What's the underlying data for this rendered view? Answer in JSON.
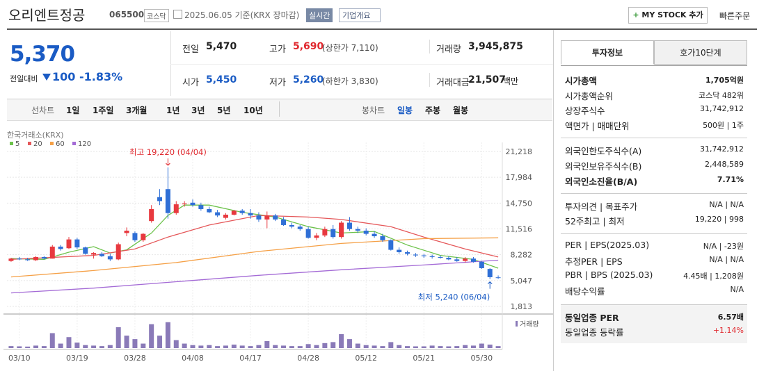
{
  "header": {
    "name": "오리엔트정공",
    "code": "065500",
    "market": "코스닥",
    "date": "2025.06.05 기준(KRX 장마감)",
    "realtime": "실시간",
    "overview": "기업개요",
    "mystock": "MY STOCK 추가",
    "quick_order": "빠른주문"
  },
  "price": {
    "current": "5,370",
    "change_label": "전일대비",
    "change": "100",
    "rate": "-1.83%"
  },
  "summary": {
    "rows": [
      [
        {
          "label": "전일",
          "value": "5,470"
        },
        {
          "label": "고가",
          "value": "5,690",
          "extra": "(상한가 7,110)"
        },
        {
          "label": "거래량",
          "value": "3,945,875"
        }
      ],
      [
        {
          "label": "시가",
          "value": "5,450"
        },
        {
          "label": "저가",
          "value": "5,260",
          "extra": "(하한가 3,830)"
        },
        {
          "label": "거래대금",
          "value": "21,507",
          "unit": "백만"
        }
      ]
    ]
  },
  "tabs": {
    "line_label": "선차트",
    "line": [
      "1일",
      "1주일",
      "3개월",
      "1년",
      "3년",
      "5년",
      "10년"
    ],
    "candle_label": "봉차트",
    "candle": [
      "일봉",
      "주봉",
      "월봉"
    ]
  },
  "chart_data": {
    "type": "candlestick",
    "source": "한국거래소(KRX)",
    "up_color": "#e8393f",
    "down_color": "#2f6fd6",
    "open": [
      7500,
      7800,
      7700,
      7600,
      8000,
      7800,
      9300,
      9100,
      10200,
      9200,
      8300,
      8400,
      8100,
      7700,
      11000,
      11000,
      10100,
      12500,
      15500,
      16500,
      13500,
      14600,
      14800,
      14500,
      14000,
      13600,
      12900,
      13300,
      13800,
      13500,
      13200,
      12700,
      13200,
      12700,
      12000,
      11800,
      11500,
      10400,
      10700,
      11500,
      10500,
      12300,
      11500,
      11300,
      10900,
      10600,
      10100,
      8900,
      8600,
      8300,
      8200,
      8100,
      8000,
      7900,
      7700,
      7500,
      7800,
      7400,
      6500,
      5450
    ],
    "high": [
      7900,
      8000,
      7900,
      8100,
      8100,
      9500,
      9500,
      10500,
      10400,
      9300,
      8600,
      8600,
      8400,
      9800,
      11700,
      11200,
      11000,
      14500,
      16500,
      19220,
      15000,
      15000,
      15200,
      14800,
      14300,
      13900,
      13500,
      13900,
      14000,
      14000,
      13600,
      13700,
      13400,
      13000,
      12300,
      12000,
      11800,
      11000,
      11800,
      12000,
      12500,
      13000,
      11800,
      11600,
      11200,
      10900,
      10200,
      9200,
      8800,
      8500,
      8400,
      8300,
      8200,
      8100,
      8000,
      8000,
      8000,
      7500,
      6600,
      5690
    ],
    "low": [
      7400,
      7600,
      7500,
      7500,
      7700,
      7800,
      8800,
      9000,
      9000,
      8300,
      7800,
      8000,
      7500,
      7600,
      10600,
      9900,
      9900,
      12300,
      14500,
      12800,
      13300,
      14300,
      14300,
      13800,
      13500,
      13000,
      12700,
      13200,
      13300,
      12800,
      12400,
      11600,
      12500,
      11900,
      11600,
      11300,
      10300,
      10100,
      10500,
      10300,
      10300,
      11300,
      11000,
      10700,
      10400,
      9900,
      8800,
      8400,
      8200,
      8000,
      7900,
      7800,
      7800,
      7600,
      7400,
      7300,
      7300,
      6500,
      5240,
      5260
    ],
    "close": [
      7800,
      7700,
      7600,
      8000,
      7800,
      9300,
      9000,
      10200,
      9200,
      8400,
      8500,
      8100,
      7700,
      9600,
      11300,
      10100,
      10900,
      14000,
      15000,
      13500,
      14600,
      14700,
      14500,
      14000,
      13600,
      13200,
      13300,
      13800,
      13500,
      13200,
      12700,
      13200,
      12700,
      12000,
      11800,
      11500,
      10400,
      10700,
      11500,
      10500,
      12300,
      11500,
      11300,
      10900,
      10600,
      10100,
      8900,
      8600,
      8400,
      8200,
      8100,
      8000,
      7900,
      7700,
      7500,
      7800,
      7400,
      6600,
      5470,
      5370
    ],
    "volume": [
      4000000,
      3500000,
      3000000,
      5000000,
      4000000,
      30000000,
      9000000,
      22000000,
      11000000,
      6000000,
      5000000,
      4000000,
      6000000,
      42000000,
      25000000,
      18000000,
      9000000,
      48000000,
      25000000,
      52000000,
      16000000,
      9000000,
      6000000,
      5000000,
      6000000,
      4000000,
      5000000,
      7000000,
      5000000,
      4000000,
      6000000,
      14000000,
      6000000,
      5000000,
      4000000,
      4000000,
      8000000,
      6000000,
      10000000,
      12000000,
      28000000,
      18000000,
      9000000,
      6000000,
      5000000,
      4000000,
      12000000,
      6000000,
      4000000,
      3500000,
      3500000,
      5000000,
      4000000,
      3500000,
      4000000,
      6000000,
      5000000,
      9000000,
      7000000,
      3945875
    ],
    "volume_label": "거래량",
    "volume_ylim": [
      0,
      60000000
    ],
    "xlim": [
      -0.5,
      59.5
    ],
    "xticks": [
      {
        "value": 1,
        "label": "03/10"
      },
      {
        "value": 8,
        "label": "03/19"
      },
      {
        "value": 15,
        "label": "03/28"
      },
      {
        "value": 22,
        "label": "04/08"
      },
      {
        "value": 29,
        "label": "04/17"
      },
      {
        "value": 36,
        "label": "04/28"
      },
      {
        "value": 43,
        "label": "05/12"
      },
      {
        "value": 50,
        "label": "05/21"
      },
      {
        "value": 57,
        "label": "05/30"
      }
    ],
    "ylim": [
      1030,
      22350
    ],
    "yticks": [
      {
        "value": 1813,
        "label": "1,813"
      },
      {
        "value": 5047,
        "label": "5,047"
      },
      {
        "value": 8282,
        "label": "8,282"
      },
      {
        "value": 11516,
        "label": "11,516"
      },
      {
        "value": 14750,
        "label": "14,750"
      },
      {
        "value": 17984,
        "label": "17,984"
      },
      {
        "value": 21218,
        "label": "21,218"
      }
    ],
    "series": [
      {
        "name": "5",
        "color": "#6cc24a",
        "x": [
          0,
          4,
          7,
          10,
          12,
          14,
          17,
          19,
          21,
          24,
          28,
          32,
          36,
          40,
          44,
          48,
          52,
          56,
          59
        ],
        "values": [
          7800,
          7700,
          8600,
          9300,
          8500,
          8900,
          11000,
          13200,
          14500,
          14500,
          13600,
          13000,
          11800,
          11000,
          11200,
          9500,
          8200,
          7700,
          6600
        ]
      },
      {
        "name": "20",
        "color": "#e5585a",
        "x": [
          0,
          10,
          15,
          19,
          24,
          30,
          36,
          40,
          46,
          50,
          55,
          59
        ],
        "values": [
          7700,
          8200,
          9000,
          10500,
          12000,
          13200,
          13000,
          12700,
          11800,
          10500,
          9000,
          8000
        ]
      },
      {
        "name": "60",
        "color": "#f5a046",
        "x": [
          0,
          10,
          20,
          30,
          40,
          50,
          59
        ],
        "values": [
          5500,
          6300,
          7300,
          8700,
          9700,
          10300,
          10400
        ]
      },
      {
        "name": "120",
        "color": "#a46bd6",
        "x": [
          0,
          10,
          20,
          30,
          40,
          50,
          59
        ],
        "values": [
          3500,
          4100,
          4900,
          5700,
          6400,
          7000,
          7600
        ]
      }
    ],
    "annotations": [
      {
        "text": "최고 19,220 (04/04)",
        "x": 19,
        "y": 19220
      },
      {
        "text": "최저 5,240 (06/04)",
        "x": 58,
        "y": 5240
      }
    ]
  },
  "investment": {
    "tabs": [
      "투자정보",
      "호가10단계"
    ],
    "groups": [
      [
        {
          "label": "시가총액",
          "value": "1,705억원"
        },
        {
          "label": "시가총액순위",
          "value": "코스닥 482위"
        },
        {
          "label": "상장주식수",
          "value": "31,742,912"
        },
        {
          "label": "액면가 | 매매단위",
          "value": "500원 | 1주"
        }
      ],
      [
        {
          "label": "외국인한도주식수(A)",
          "value": "31,742,912"
        },
        {
          "label": "외국인보유주식수(B)",
          "value": "2,448,589"
        },
        {
          "label": "외국인소진율(B/A)",
          "value": "7.71%"
        }
      ],
      [
        {
          "label": "투자의견 | 목표주가",
          "value": "N/A | N/A"
        },
        {
          "label": "52주최고 | 최저",
          "value": "19,220 | 998"
        }
      ],
      [
        {
          "label": "PER | EPS(2025.03)",
          "value": "N/A | -23원"
        },
        {
          "label": "추정PER | EPS",
          "value": "N/A | N/A"
        },
        {
          "label": "PBR | BPS (2025.03)",
          "value": "4.45배 | 1,208원"
        },
        {
          "label": "배당수익률",
          "value": "N/A"
        }
      ],
      [
        {
          "label": "동일업종 PER",
          "value": "6.57배"
        },
        {
          "label": "동일업종 등락률",
          "value": "+1.14%"
        }
      ]
    ]
  }
}
